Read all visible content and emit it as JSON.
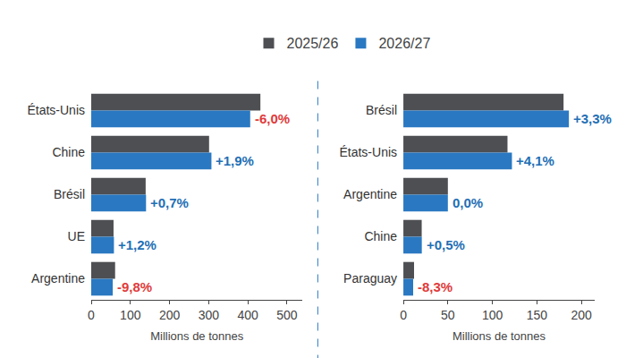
{
  "chart_data": [
    {
      "type": "bar",
      "orientation": "horizontal",
      "legend": "top",
      "grid": false,
      "categories": [
        "États-Unis",
        "Chine",
        "Brésil",
        "UE",
        "Argentine"
      ],
      "series": [
        {
          "name": "2025/26",
          "color": "#4d4f53",
          "values": [
            432,
            301,
            139,
            57,
            61
          ]
        },
        {
          "name": "2026/27",
          "color": "#2a78c2",
          "values": [
            406,
            307,
            140,
            58,
            55
          ],
          "changes": [
            {
              "value": -6.0,
              "label": "-6,0%"
            },
            {
              "value": 1.9,
              "label": "+1,9%"
            },
            {
              "value": 0.7,
              "label": "+0,7%"
            },
            {
              "value": 1.2,
              "label": "+1,2%"
            },
            {
              "value": -9.8,
              "label": "-9,8%"
            }
          ]
        }
      ],
      "xlabel": "Millions de tonnes",
      "xlim": [
        0,
        540
      ],
      "xticks": [
        0,
        100,
        200,
        300,
        400,
        500
      ]
    },
    {
      "type": "bar",
      "orientation": "horizontal",
      "legend": "top",
      "grid": false,
      "categories": [
        "Brésil",
        "États-Unis",
        "Argentine",
        "Chine",
        "Paraguay"
      ],
      "series": [
        {
          "name": "2025/26",
          "color": "#4d4f53",
          "values": [
            180,
            117,
            50,
            20.6,
            12
          ]
        },
        {
          "name": "2026/27",
          "color": "#2a78c2",
          "values": [
            186,
            122,
            50,
            20.7,
            11
          ],
          "changes": [
            {
              "value": 3.3,
              "label": "+3,3%"
            },
            {
              "value": 4.1,
              "label": "+4,1%"
            },
            {
              "value": 0.0,
              "label": "0,0%"
            },
            {
              "value": 0.5,
              "label": "+0,5%"
            },
            {
              "value": -8.3,
              "label": "-8,3%"
            }
          ]
        }
      ],
      "xlabel": "Millions de tonnes",
      "xlim": [
        0,
        215
      ],
      "xticks": [
        0,
        50,
        100,
        150,
        200
      ]
    }
  ]
}
